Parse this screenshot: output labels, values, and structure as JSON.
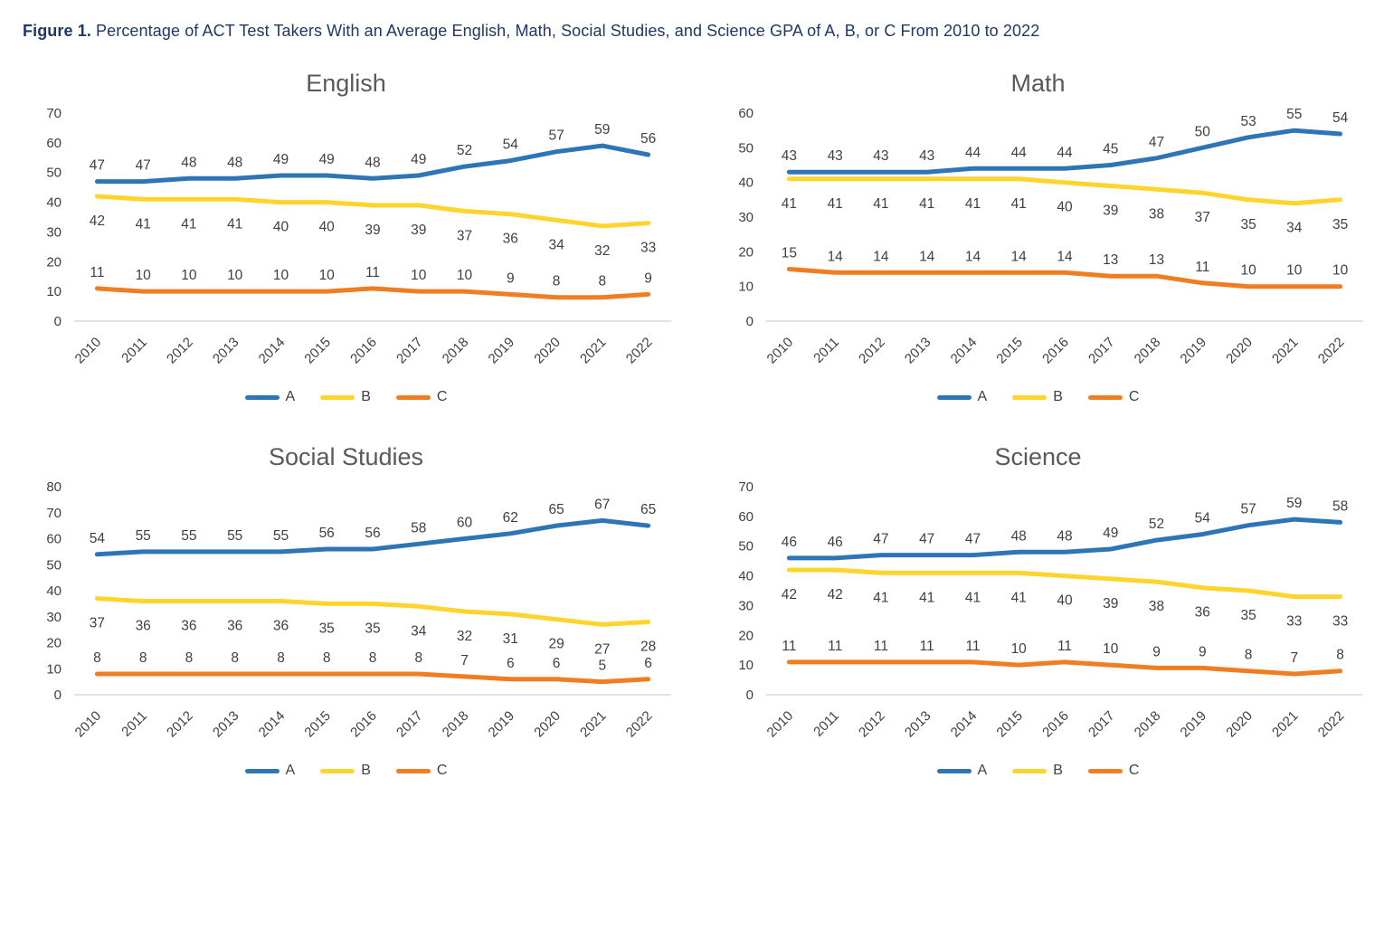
{
  "figure": {
    "label": "Figure 1.",
    "title": " Percentage of ACT Test Takers With an Average English, Math, Social Studies, and Science GPA of A, B, or C From 2010 to 2022"
  },
  "colors": {
    "series_a_blue": "#2E75B6",
    "series_b_yellow": "#FFD42E",
    "series_c_orange": "#EF7D22",
    "figure_title_navy": "#1F3864",
    "chart_title_gray": "#595959",
    "label_gray": "#404040",
    "axis_line_gray": "#D9D9D9"
  },
  "chart_data": [
    {
      "type": "line",
      "title": "English",
      "categories": [
        "2010",
        "2011",
        "2012",
        "2013",
        "2014",
        "2015",
        "2016",
        "2017",
        "2018",
        "2019",
        "2020",
        "2021",
        "2022"
      ],
      "ylim": [
        0,
        70
      ],
      "ytick_step": 10,
      "grid": false,
      "legend_position": "bottom",
      "series": [
        {
          "name": "A",
          "color": "#2E75B6",
          "label_position": "above",
          "values": [
            47,
            47,
            48,
            48,
            49,
            49,
            48,
            49,
            52,
            54,
            57,
            59,
            56
          ]
        },
        {
          "name": "B",
          "color": "#FFD42E",
          "label_position": "below",
          "values": [
            42,
            41,
            41,
            41,
            40,
            40,
            39,
            39,
            37,
            36,
            34,
            32,
            33
          ]
        },
        {
          "name": "C",
          "color": "#EF7D22",
          "label_position": "above",
          "values": [
            11,
            10,
            10,
            10,
            10,
            10,
            11,
            10,
            10,
            9,
            8,
            8,
            9
          ]
        }
      ]
    },
    {
      "type": "line",
      "title": "Math",
      "categories": [
        "2010",
        "2011",
        "2012",
        "2013",
        "2014",
        "2015",
        "2016",
        "2017",
        "2018",
        "2019",
        "2020",
        "2021",
        "2022"
      ],
      "ylim": [
        0,
        60
      ],
      "ytick_step": 10,
      "grid": false,
      "legend_position": "bottom",
      "series": [
        {
          "name": "A",
          "color": "#2E75B6",
          "label_position": "above",
          "values": [
            43,
            43,
            43,
            43,
            44,
            44,
            44,
            45,
            47,
            50,
            53,
            55,
            54
          ]
        },
        {
          "name": "B",
          "color": "#FFD42E",
          "label_position": "below",
          "values": [
            41,
            41,
            41,
            41,
            41,
            41,
            40,
            39,
            38,
            37,
            35,
            34,
            35
          ]
        },
        {
          "name": "C",
          "color": "#EF7D22",
          "label_position": "above",
          "values": [
            15,
            14,
            14,
            14,
            14,
            14,
            14,
            13,
            13,
            11,
            10,
            10,
            10
          ]
        }
      ]
    },
    {
      "type": "line",
      "title": "Social Studies",
      "categories": [
        "2010",
        "2011",
        "2012",
        "2013",
        "2014",
        "2015",
        "2016",
        "2017",
        "2018",
        "2019",
        "2020",
        "2021",
        "2022"
      ],
      "ylim": [
        0,
        80
      ],
      "ytick_step": 10,
      "grid": false,
      "legend_position": "bottom",
      "series": [
        {
          "name": "A",
          "color": "#2E75B6",
          "label_position": "above",
          "values": [
            54,
            55,
            55,
            55,
            55,
            56,
            56,
            58,
            60,
            62,
            65,
            67,
            65
          ]
        },
        {
          "name": "B",
          "color": "#FFD42E",
          "label_position": "below",
          "values": [
            37,
            36,
            36,
            36,
            36,
            35,
            35,
            34,
            32,
            31,
            29,
            27,
            28
          ]
        },
        {
          "name": "C",
          "color": "#EF7D22",
          "label_position": "above",
          "values": [
            8,
            8,
            8,
            8,
            8,
            8,
            8,
            8,
            7,
            6,
            6,
            5,
            6
          ]
        }
      ]
    },
    {
      "type": "line",
      "title": "Science",
      "categories": [
        "2010",
        "2011",
        "2012",
        "2013",
        "2014",
        "2015",
        "2016",
        "2017",
        "2018",
        "2019",
        "2020",
        "2021",
        "2022"
      ],
      "ylim": [
        0,
        70
      ],
      "ytick_step": 10,
      "grid": false,
      "legend_position": "bottom",
      "series": [
        {
          "name": "A",
          "color": "#2E75B6",
          "label_position": "above",
          "values": [
            46,
            46,
            47,
            47,
            47,
            48,
            48,
            49,
            52,
            54,
            57,
            59,
            58
          ]
        },
        {
          "name": "B",
          "color": "#FFD42E",
          "label_position": "below",
          "values": [
            42,
            42,
            41,
            41,
            41,
            41,
            40,
            39,
            38,
            36,
            35,
            33,
            33
          ]
        },
        {
          "name": "C",
          "color": "#EF7D22",
          "label_position": "above",
          "values": [
            11,
            11,
            11,
            11,
            11,
            10,
            11,
            10,
            9,
            9,
            8,
            7,
            8
          ]
        }
      ]
    }
  ]
}
